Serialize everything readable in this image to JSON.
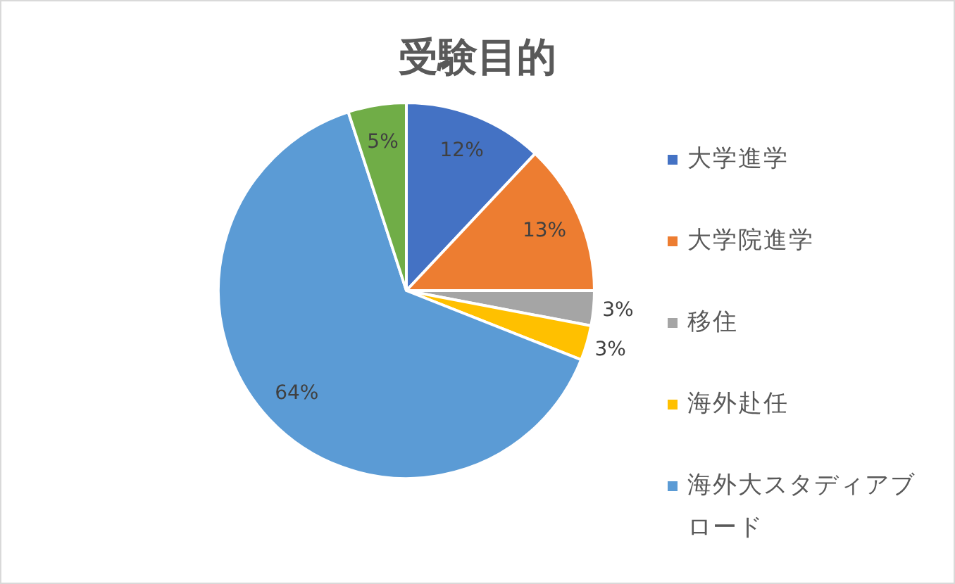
{
  "chart_data": {
    "type": "pie",
    "title": "受験目的",
    "categories": [
      "大学進学",
      "大学院進学",
      "移住",
      "海外赴任",
      "海外大スタディアブロード",
      null
    ],
    "values": [
      12,
      13,
      3,
      3,
      64,
      5
    ],
    "colors": [
      "#4472c4",
      "#ed7d31",
      "#a5a5a5",
      "#ffc000",
      "#5b9bd5",
      "#70ad47"
    ],
    "value_labels": [
      "12%",
      "13%",
      "3%",
      "3%",
      "64%",
      "5%"
    ],
    "legend": "right"
  }
}
